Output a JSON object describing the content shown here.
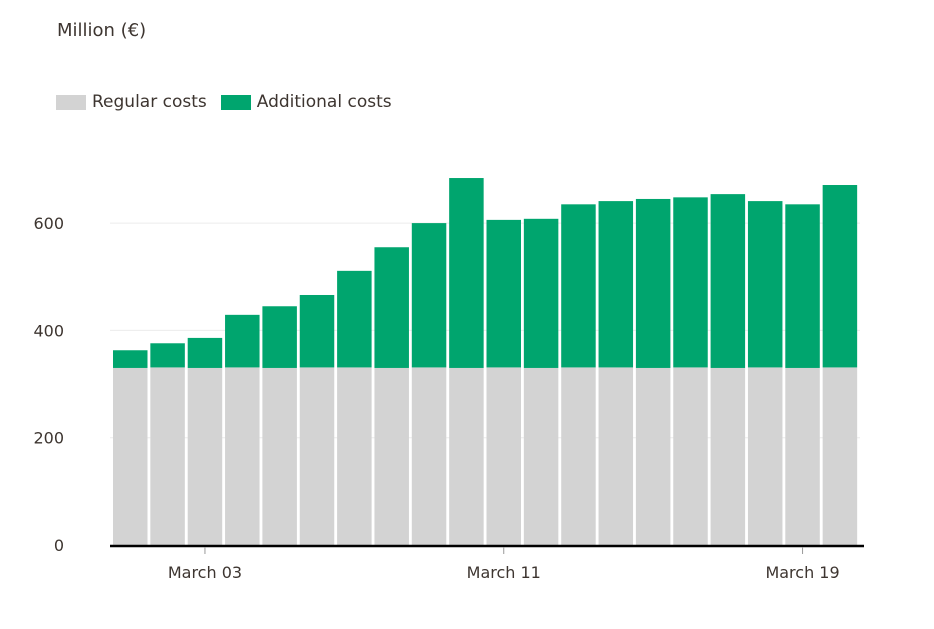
{
  "chart_data": {
    "type": "bar",
    "stacked": true,
    "title": "",
    "ylabel": "Million (€)",
    "xlabel": "",
    "ylim": [
      0,
      700
    ],
    "yticks": [
      0,
      200,
      400,
      600
    ],
    "xtick_labels": [
      "March 03",
      "March 11",
      "March 19"
    ],
    "xtick_indices": [
      2,
      10,
      18
    ],
    "grid": true,
    "legend_position": "top-left",
    "categories": [
      "March 01",
      "March 02",
      "March 03",
      "March 04",
      "March 05",
      "March 06",
      "March 07",
      "March 08",
      "March 09",
      "March 10",
      "March 11",
      "March 12",
      "March 13",
      "March 14",
      "March 15",
      "March 16",
      "March 17",
      "March 18",
      "March 19",
      "March 20"
    ],
    "series": [
      {
        "name": "Regular costs",
        "color": "#d3d3d3",
        "values": [
          330,
          331,
          330,
          331,
          330,
          331,
          331,
          330,
          331,
          330,
          331,
          330,
          331,
          331,
          330,
          331,
          330,
          331,
          330,
          331
        ]
      },
      {
        "name": "Additional costs",
        "color": "#00a56e",
        "values": [
          33,
          45,
          56,
          98,
          115,
          135,
          180,
          225,
          269,
          354,
          275,
          278,
          304,
          310,
          315,
          317,
          324,
          310,
          305,
          340
        ]
      }
    ]
  }
}
